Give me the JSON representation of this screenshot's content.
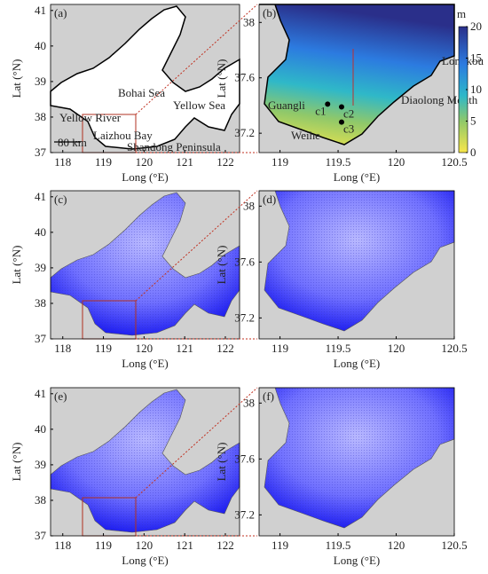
{
  "panels": [
    {
      "label": "(a)",
      "xlabel": "Long (°E)",
      "ylabel": "Lat (°N)",
      "xlim": [
        117.7,
        122.35
      ],
      "ylim": [
        37,
        41.17
      ],
      "xticks": [
        118,
        119,
        120,
        121,
        122
      ],
      "yticks": [
        37,
        38,
        39,
        40,
        41
      ],
      "annotations": [
        "Bohai Sea",
        "Yellow Sea",
        "Yellow River",
        "Laizhou Bay",
        "Shandong Peninsula",
        "80 km"
      ]
    },
    {
      "label": "(b)",
      "xlabel": "Long (°E)",
      "ylabel": "Lat (°N)",
      "xlim": [
        118.82,
        120.5
      ],
      "ylim": [
        37.06,
        38.13
      ],
      "xticks": [
        119,
        119.5,
        120,
        120.5
      ],
      "yticks": [
        37.2,
        37.6,
        38
      ],
      "annotations": [
        "Longkou",
        "Diaolong Mouth",
        "Guangli",
        "Weihe"
      ]
    },
    {
      "label": "(c)",
      "xlabel": "Long (°E)",
      "ylabel": "Lat (°N)",
      "xlim": [
        117.7,
        122.35
      ],
      "ylim": [
        37,
        41.17
      ],
      "xticks": [
        118,
        119,
        120,
        121,
        122
      ],
      "yticks": [
        37,
        38,
        39,
        40,
        41
      ]
    },
    {
      "label": "(d)",
      "xlabel": "Long (°E)",
      "ylabel": "Lat (°N)",
      "xlim": [
        118.82,
        120.5
      ],
      "ylim": [
        37.05,
        38.11
      ],
      "xticks": [
        119,
        119.5,
        120,
        120.5
      ],
      "yticks": [
        37.2,
        37.6,
        38
      ]
    },
    {
      "label": "(e)",
      "xlabel": "Long (°E)",
      "ylabel": "Lat (°N)",
      "xlim": [
        117.7,
        122.35
      ],
      "ylim": [
        37,
        41.17
      ],
      "xticks": [
        118,
        119,
        120,
        121,
        122
      ],
      "yticks": [
        37,
        38,
        39,
        40,
        41
      ]
    },
    {
      "label": "(f)",
      "xlabel": "Long (°E)",
      "ylabel": "Lat (°N)",
      "xlim": [
        118.82,
        120.5
      ],
      "ylim": [
        37.05,
        38.11
      ],
      "xticks": [
        119,
        119.5,
        120,
        120.5
      ],
      "yticks": [
        37.2,
        37.6,
        38
      ]
    }
  ],
  "colorbar": {
    "unit": "m",
    "lim": [
      0,
      20
    ],
    "ticks": [
      0,
      5,
      10,
      15,
      20
    ]
  },
  "stations": [
    {
      "label": "c1",
      "lon": 119.41,
      "lat": 37.41
    },
    {
      "label": "c2",
      "lon": 119.53,
      "lat": 37.39
    },
    {
      "label": "c3",
      "lon": 119.53,
      "lat": 37.28
    }
  ]
}
